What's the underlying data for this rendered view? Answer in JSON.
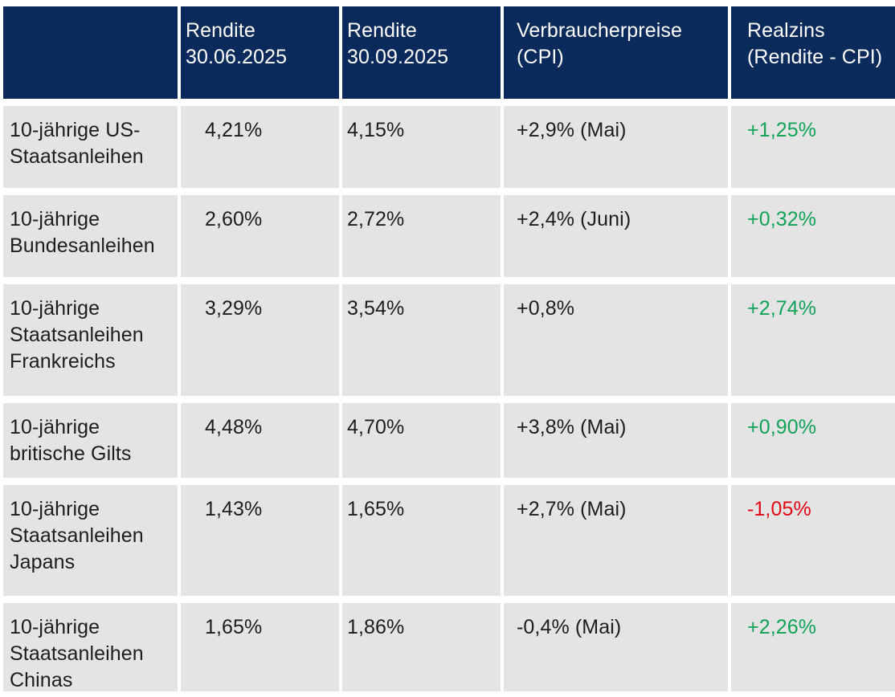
{
  "colors": {
    "header_bg": "#0b2a5c",
    "header_text": "#ffffff",
    "row_bg": "#e4e4e4",
    "body_text": "#1d1d1b",
    "positive": "#10a357",
    "negative": "#e30613"
  },
  "table": {
    "columns": [
      {
        "label": ""
      },
      {
        "label": "Rendite 30.06.2025"
      },
      {
        "label": "Rendite 30.09.2025"
      },
      {
        "label": "Verbraucherpreise (CPI)"
      },
      {
        "label": "Realzins (Rendite - CPI)"
      }
    ],
    "rows": [
      {
        "label": "10-jährige US-Staatsanleihen",
        "rendite_30_06_2025": "4,21%",
        "rendite_30_09_2025": "4,15%",
        "cpi": "+2,9% (Mai)",
        "realzins": "+1,25%",
        "realzins_sign": "positive"
      },
      {
        "label": "10-jährige Bundesanleihen",
        "rendite_30_06_2025": "2,60%",
        "rendite_30_09_2025": "2,72%",
        "cpi": "+2,4% (Juni)",
        "realzins": "+0,32%",
        "realzins_sign": "positive"
      },
      {
        "label": "10-jährige Staatsanleihen Frankreichs",
        "rendite_30_06_2025": "3,29%",
        "rendite_30_09_2025": "3,54%",
        "cpi": "+0,8%",
        "realzins": "+2,74%",
        "realzins_sign": "positive"
      },
      {
        "label": "10-jährige britische Gilts",
        "rendite_30_06_2025": "4,48%",
        "rendite_30_09_2025": "4,70%",
        "cpi": "+3,8% (Mai)",
        "realzins": "+0,90%",
        "realzins_sign": "positive"
      },
      {
        "label": "10-jährige Staatsanleihen Japans",
        "rendite_30_06_2025": "1,43%",
        "rendite_30_09_2025": "1,65%",
        "cpi": "+2,7% (Mai)",
        "realzins": "-1,05%",
        "realzins_sign": "negative"
      },
      {
        "label": "10-jährige Staatsanleihen Chinas",
        "rendite_30_06_2025": "1,65%",
        "rendite_30_09_2025": "1,86%",
        "cpi": "-0,4% (Mai)",
        "realzins": "+2,26%",
        "realzins_sign": "positive"
      }
    ]
  },
  "chart_data": {
    "type": "table",
    "title": "",
    "columns": [
      "",
      "Rendite 30.06.2025",
      "Rendite 30.09.2025",
      "Verbraucherpreise (CPI)",
      "Realzins (Rendite - CPI)"
    ],
    "rows": [
      [
        "10-jährige US-Staatsanleihen",
        "4,21%",
        "4,15%",
        "+2,9% (Mai)",
        "+1,25%"
      ],
      [
        "10-jährige Bundesanleihen",
        "2,60%",
        "2,72%",
        "+2,4% (Juni)",
        "+0,32%"
      ],
      [
        "10-jährige Staatsanleihen Frankreichs",
        "3,29%",
        "3,54%",
        "+0,8%",
        "+2,74%"
      ],
      [
        "10-jährige britische Gilts",
        "4,48%",
        "4,70%",
        "+3,8% (Mai)",
        "+0,90%"
      ],
      [
        "10-jährige Staatsanleihen Japans",
        "1,43%",
        "1,65%",
        "+2,7% (Mai)",
        "-1,05%"
      ],
      [
        "10-jährige Staatsanleihen Chinas",
        "1,65%",
        "1,86%",
        "-0,4% (Mai)",
        "+2,26%"
      ]
    ],
    "realzins_numeric": [
      1.25,
      0.32,
      2.74,
      0.9,
      -1.05,
      2.26
    ],
    "rendite_30_06_numeric": [
      4.21,
      2.6,
      3.29,
      4.48,
      1.43,
      1.65
    ],
    "rendite_30_09_numeric": [
      4.15,
      2.72,
      3.54,
      4.7,
      1.65,
      1.86
    ]
  }
}
